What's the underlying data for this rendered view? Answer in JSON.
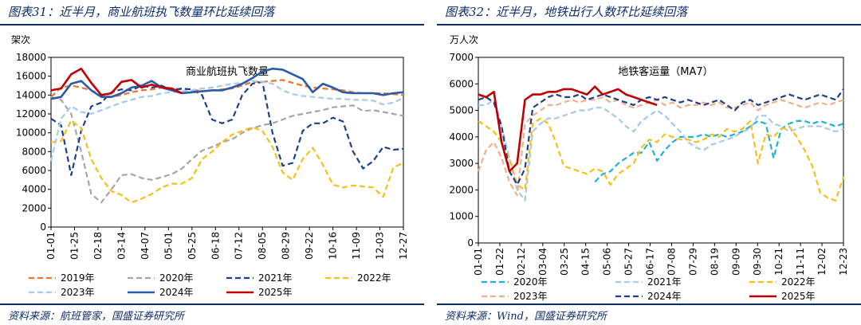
{
  "left": {
    "figure_title": "图表31：近半月，商业航班执飞数量环比延续回落",
    "source": "资料来源：航班管家，国盛证券研究所",
    "chart_data": {
      "type": "line",
      "title": "商业航班执飞数量",
      "ylabel": "架次",
      "ylim": [
        0,
        18000
      ],
      "yticks": [
        "0",
        "2000",
        "4000",
        "6000",
        "8000",
        "10000",
        "12000",
        "14000",
        "16000",
        "18000"
      ],
      "xticks": [
        "01-01",
        "01-25",
        "02-18",
        "03-14",
        "04-07",
        "05-01",
        "05-25",
        "06-18",
        "07-12",
        "08-05",
        "08-29",
        "09-22",
        "10-16",
        "11-09",
        "12-03",
        "12-27"
      ],
      "grid": false,
      "legend_position": "bottom",
      "series": [
        {
          "name": "2019年",
          "color": "#e87530",
          "dash": "long",
          "values": [
            13800,
            14800,
            15000,
            14800,
            14500,
            14000,
            13800,
            14000,
            14300,
            14500,
            14600,
            14800,
            14700,
            14600,
            14600,
            14400,
            14500,
            14600,
            14700,
            15000,
            15400,
            15400,
            15500,
            15600,
            15300,
            15000,
            14800,
            14700,
            14600,
            14500,
            14300,
            14200,
            14200,
            14200,
            14100,
            14000
          ]
        },
        {
          "name": "2020年",
          "color": "#a6a6a6",
          "dash": "long",
          "values": [
            13800,
            13500,
            12000,
            8000,
            3500,
            2600,
            4000,
            5500,
            5600,
            5200,
            5000,
            5300,
            5600,
            6200,
            7200,
            8100,
            8500,
            9000,
            9300,
            10000,
            10500,
            10800,
            11000,
            11400,
            11800,
            12000,
            12200,
            12400,
            12700,
            12800,
            12900,
            12300,
            12400,
            12200,
            12000,
            11800
          ]
        },
        {
          "name": "2021年",
          "color": "#1f3f8c",
          "dash": "long",
          "values": [
            11500,
            10800,
            5500,
            10200,
            12800,
            13200,
            14300,
            14600,
            14500,
            15000,
            14800,
            15000,
            14500,
            14700,
            14600,
            14000,
            11400,
            11000,
            11400,
            14000,
            15200,
            15400,
            10000,
            6500,
            6800,
            10200,
            11000,
            11000,
            11600,
            11200,
            8000,
            6200,
            7000,
            8500,
            8200,
            8300
          ]
        },
        {
          "name": "2022年",
          "color": "#f5c01a",
          "dash": "long",
          "values": [
            9000,
            9100,
            11300,
            10500,
            7200,
            5200,
            3800,
            3400,
            2600,
            3000,
            3500,
            4200,
            4600,
            4600,
            5200,
            7200,
            8000,
            9000,
            9800,
            10200,
            10600,
            10200,
            8500,
            5800,
            5000,
            7200,
            8400,
            6600,
            4500,
            4200,
            4400,
            4300,
            4200,
            3200,
            6300,
            6800
          ]
        },
        {
          "name": "2023年",
          "color": "#a8c9e8",
          "dash": "long",
          "values": [
            7000,
            11500,
            12800,
            12200,
            12000,
            12400,
            12800,
            13200,
            13500,
            13800,
            13900,
            14200,
            14300,
            14400,
            14500,
            14700,
            14800,
            15000,
            15200,
            15300,
            15500,
            15400,
            15200,
            14500,
            14100,
            13900,
            13800,
            13700,
            13600,
            13600,
            13500,
            13500,
            13400,
            13000,
            13200,
            13700
          ]
        },
        {
          "name": "2024年",
          "color": "#2a5aa8",
          "dash": "solid",
          "values": [
            13600,
            13800,
            15200,
            15500,
            14500,
            13800,
            13800,
            14200,
            14800,
            15000,
            15500,
            14800,
            14500,
            14200,
            14300,
            14400,
            14500,
            14500,
            14800,
            15200,
            15800,
            16500,
            16800,
            16700,
            16200,
            15700,
            14300,
            15200,
            14800,
            14300,
            14200,
            14200,
            14200,
            14000,
            14200,
            14300
          ]
        },
        {
          "name": "2025年",
          "color": "#c00000",
          "dash": "solid",
          "values": [
            14500,
            14700,
            16200,
            16800,
            15300,
            14000,
            14200,
            15400,
            15600,
            14800,
            15100,
            14800,
            14700,
            14200,
            null,
            null,
            null,
            null,
            null,
            null,
            null,
            null,
            null,
            null,
            null,
            null,
            null,
            null,
            null,
            null,
            null,
            null,
            null,
            null,
            null,
            null
          ]
        }
      ]
    }
  },
  "right": {
    "figure_title": "图表32：近半月，地铁出行人数环比延续回落",
    "source": "资料来源：Wind，国盛证券研究所",
    "chart_data": {
      "type": "line",
      "title": "地铁客运量（MA7）",
      "ylabel": "万人次",
      "ylim": [
        0,
        7000
      ],
      "yticks": [
        "0",
        "1000",
        "2000",
        "3000",
        "4000",
        "5000",
        "6000",
        "7000"
      ],
      "xticks": [
        "01-01",
        "01-22",
        "02-12",
        "03-04",
        "03-25",
        "04-15",
        "05-06",
        "05-27",
        "06-17",
        "07-08",
        "07-29",
        "08-19",
        "09-09",
        "09-30",
        "10-21",
        "11-11",
        "12-02",
        "12-23"
      ],
      "grid": false,
      "legend_position": "bottom",
      "series": [
        {
          "name": "2020年",
          "color": "#1fb0e0",
          "dash": "long",
          "values": [
            null,
            null,
            null,
            null,
            null,
            null,
            null,
            null,
            null,
            null,
            null,
            null,
            null,
            null,
            null,
            2300,
            2600,
            2700,
            3000,
            3200,
            3400,
            3400,
            3800,
            3100,
            3500,
            3800,
            4000,
            4000,
            4000,
            4100,
            4000,
            4100,
            4000,
            4100,
            4200,
            4400,
            4600,
            4500,
            3200,
            4300,
            4500,
            4600,
            4600,
            4500,
            4600,
            4500,
            4400,
            4500
          ]
        },
        {
          "name": "2021年",
          "color": "#a8c9e8",
          "dash": "long",
          "values": [
            5200,
            5200,
            5400,
            4400,
            3200,
            2000,
            1600,
            4200,
            4500,
            4700,
            4700,
            4800,
            4900,
            5000,
            5000,
            5100,
            5100,
            4900,
            4700,
            4400,
            4200,
            4600,
            4800,
            5000,
            4800,
            4500,
            4200,
            3800,
            3600,
            3500,
            3700,
            3800,
            3900,
            4000,
            4200,
            4300,
            4800,
            4800,
            4500,
            4400,
            4200,
            4300,
            4400,
            4400,
            4400,
            4300,
            4200,
            4300
          ]
        },
        {
          "name": "2022年",
          "color": "#f5c01a",
          "dash": "long",
          "values": [
            4600,
            4400,
            4200,
            3800,
            3200,
            2200,
            2000,
            4500,
            4700,
            4500,
            3800,
            2900,
            2800,
            2700,
            2600,
            2800,
            2700,
            2200,
            2600,
            2800,
            3000,
            3600,
            3900,
            3800,
            4100,
            4000,
            3900,
            3900,
            3800,
            3900,
            4100,
            4000,
            4300,
            4200,
            4300,
            4600,
            3000,
            4100,
            4000,
            4300,
            4400,
            4000,
            3500,
            2900,
            1900,
            1700,
            1600,
            2500
          ]
        },
        {
          "name": "2023年",
          "color": "#f2b08a",
          "dash": "long",
          "values": [
            2700,
            3500,
            3800,
            3200,
            2300,
            1800,
            4500,
            4800,
            5000,
            5200,
            5200,
            5300,
            5400,
            5300,
            5400,
            5400,
            5500,
            5300,
            5400,
            5200,
            5100,
            5200,
            5300,
            5400,
            5200,
            5300,
            5100,
            5200,
            5200,
            5300,
            5200,
            5300,
            5100,
            5100,
            5200,
            5300,
            5000,
            5200,
            5300,
            5400,
            5300,
            5200,
            5100,
            5200,
            5300,
            5200,
            5300,
            5400
          ]
        },
        {
          "name": "2024年",
          "color": "#1f3f8c",
          "dash": "long",
          "values": [
            5400,
            5500,
            5300,
            4400,
            2700,
            2200,
            2800,
            5100,
            5300,
            5500,
            5600,
            5500,
            5500,
            5600,
            5400,
            5500,
            5600,
            5500,
            5400,
            5300,
            5200,
            5400,
            5500,
            5400,
            5500,
            5400,
            5300,
            5400,
            5300,
            5200,
            5300,
            5400,
            5200,
            5000,
            5300,
            5400,
            5200,
            5300,
            5400,
            5500,
            5600,
            5500,
            5400,
            5500,
            5600,
            5500,
            5400,
            5800
          ]
        },
        {
          "name": "2025年",
          "color": "#c00000",
          "dash": "solid",
          "values": [
            5600,
            5500,
            5700,
            3800,
            2700,
            3000,
            5400,
            5600,
            5600,
            5700,
            5700,
            5800,
            5800,
            5700,
            5600,
            5900,
            5600,
            5700,
            5800,
            5600,
            5500,
            5400,
            5300,
            5200,
            null,
            null,
            null,
            null,
            null,
            null,
            null,
            null,
            null,
            null,
            null,
            null,
            null,
            null,
            null,
            null,
            null,
            null,
            null,
            null,
            null,
            null,
            null,
            null
          ]
        }
      ]
    }
  }
}
